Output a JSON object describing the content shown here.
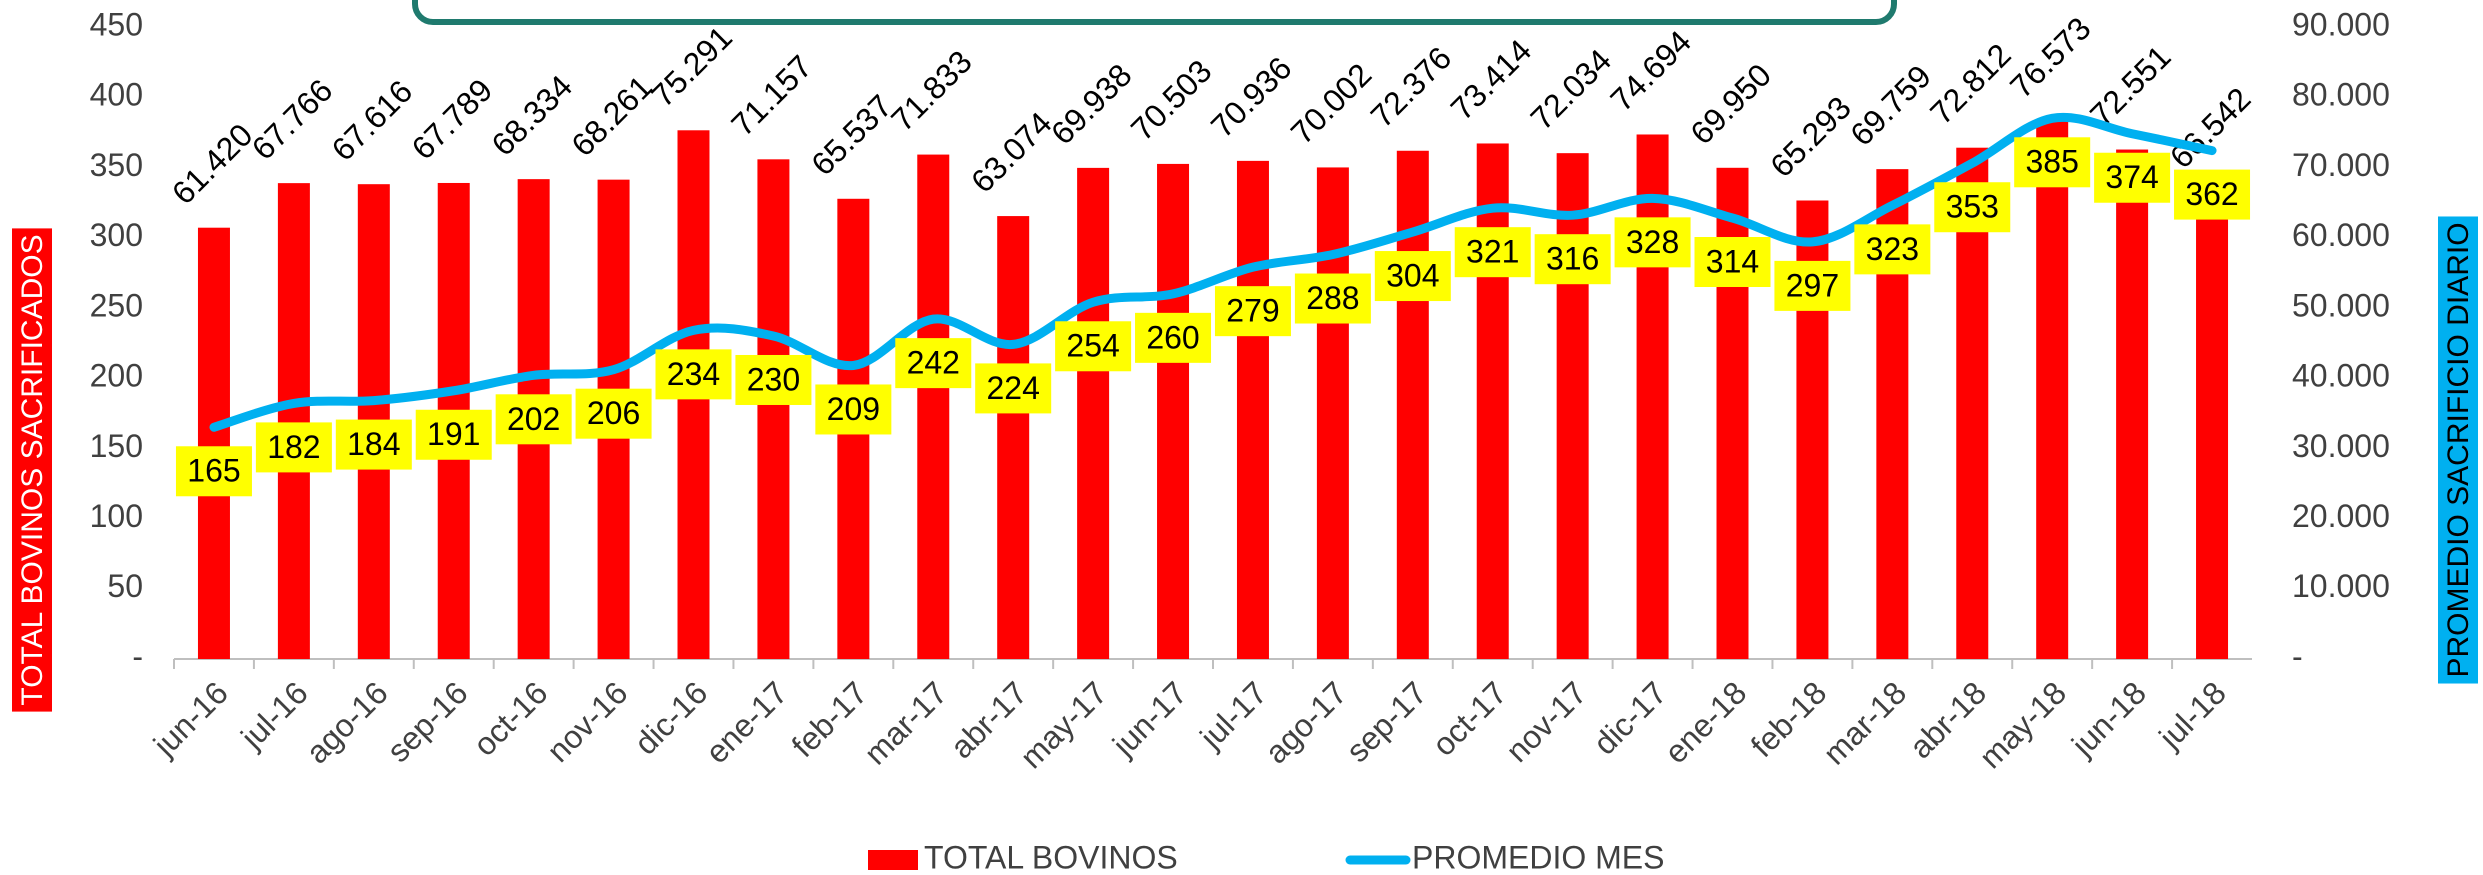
{
  "chart_data": {
    "type": "combo",
    "categories": [
      "jun-16",
      "jul-16",
      "ago-16",
      "sep-16",
      "oct-16",
      "nov-16",
      "dic-16",
      "ene-17",
      "feb-17",
      "mar-17",
      "abr-17",
      "may-17",
      "jun-17",
      "jul-17",
      "ago-17",
      "sep-17",
      "oct-17",
      "nov-17",
      "dic-17",
      "ene-18",
      "feb-18",
      "mar-18",
      "abr-18",
      "may-18",
      "jun-18",
      "jul-18"
    ],
    "ylabel": "TOTAL BOVINOS SACRIFICADOS",
    "y2label": "PROMEDIO SACRIFICIO DIARIO",
    "ylim": [
      0,
      450
    ],
    "yticks": [
      {
        "value": 0,
        "label": "-"
      },
      50,
      100,
      150,
      200,
      250,
      300,
      350,
      400,
      450
    ],
    "y2lim": [
      0,
      90000
    ],
    "y2ticks": [
      {
        "value": 0,
        "label": "-"
      },
      {
        "value": 10000,
        "label": "10.000"
      },
      {
        "value": 20000,
        "label": "20.000"
      },
      {
        "value": 30000,
        "label": "30.000"
      },
      {
        "value": 40000,
        "label": "40.000"
      },
      {
        "value": 50000,
        "label": "50.000"
      },
      {
        "value": 60000,
        "label": "60.000"
      },
      {
        "value": 70000,
        "label": "70.000"
      },
      {
        "value": 80000,
        "label": "80.000"
      },
      {
        "value": 90000,
        "label": "90.000"
      }
    ],
    "legend": "bottom",
    "series": [
      {
        "name": "TOTAL BOVINOS",
        "type": "bar",
        "axis": "y2",
        "color": "#ff0000",
        "values": [
          61420,
          67766,
          67616,
          67789,
          68334,
          68261,
          75291,
          71157,
          65537,
          71833,
          63074,
          69938,
          70503,
          70936,
          70002,
          72376,
          73414,
          72034,
          74694,
          69950,
          65293,
          69759,
          72812,
          76573,
          72551,
          66542
        ],
        "value_labels": [
          "61.420",
          "67.766",
          "67.616",
          "67.789",
          "68.334",
          "68.261",
          "75.291",
          "71.157",
          "65.537",
          "71.833",
          "63.074",
          "69.938",
          "70.503",
          "70.936",
          "70.002",
          "72.376",
          "73.414",
          "72.034",
          "74.694",
          "69.950",
          "65.293",
          "69.759",
          "72.812",
          "76.573",
          "72.551",
          "66.542"
        ]
      },
      {
        "name": "PROMEDIO MES",
        "type": "line",
        "axis": "y",
        "color": "#00b0f0",
        "label_color": "#ffff00",
        "values": [
          165,
          182,
          184,
          191,
          202,
          206,
          234,
          230,
          209,
          242,
          224,
          254,
          260,
          279,
          288,
          304,
          321,
          316,
          328,
          314,
          297,
          323,
          353,
          385,
          374,
          362
        ]
      }
    ]
  }
}
